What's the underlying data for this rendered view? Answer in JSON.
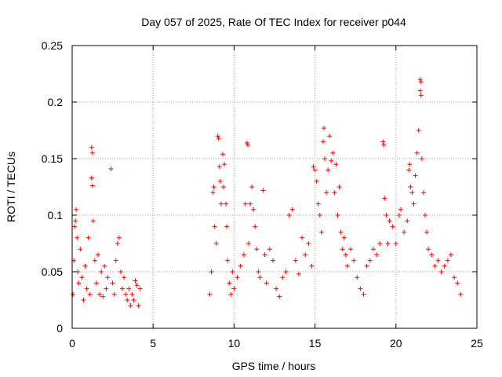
{
  "chart_data": {
    "type": "scatter",
    "title": "Day 057 of 2025, Rate Of TEC Index for receiver p044",
    "xlabel": "GPS time / hours",
    "ylabel": "ROTI / TECUs",
    "xlim": [
      0,
      25
    ],
    "ylim": [
      0,
      0.25
    ],
    "x_ticks": [
      "0",
      "5",
      "10",
      "15",
      "20",
      "25"
    ],
    "y_ticks": [
      "0",
      "0.05",
      "0.1",
      "0.15",
      "0.2",
      "0.25"
    ],
    "grid": true,
    "marker": "+",
    "color": "#ff0000",
    "series": [
      {
        "points": [
          [
            0.05,
            0.03
          ],
          [
            0.1,
            0.06
          ],
          [
            0.15,
            0.09
          ],
          [
            0.2,
            0.095
          ],
          [
            0.25,
            0.105
          ],
          [
            0.3,
            0.08
          ],
          [
            0.35,
            0.05
          ],
          [
            0.4,
            0.04
          ],
          [
            0.5,
            0.07
          ],
          [
            0.6,
            0.045
          ],
          [
            0.7,
            0.025
          ],
          [
            0.8,
            0.055
          ],
          [
            0.9,
            0.035
          ],
          [
            1.0,
            0.08
          ],
          [
            1.1,
            0.03
          ],
          [
            1.2,
            0.16
          ],
          [
            1.25,
            0.155
          ],
          [
            1.2,
            0.133
          ],
          [
            1.25,
            0.126
          ],
          [
            1.3,
            0.095
          ],
          [
            1.4,
            0.06
          ],
          [
            1.5,
            0.04
          ],
          [
            1.6,
            0.065
          ],
          [
            1.7,
            0.03
          ],
          [
            1.8,
            0.05
          ],
          [
            1.9,
            0.028
          ],
          [
            2.0,
            0.055
          ],
          [
            2.1,
            0.035
          ],
          [
            2.2,
            0.045
          ],
          [
            2.4,
            0.141
          ],
          [
            2.5,
            0.04
          ],
          [
            2.6,
            0.03
          ],
          [
            2.7,
            0.06
          ],
          [
            2.8,
            0.075
          ],
          [
            2.9,
            0.08
          ],
          [
            3.0,
            0.05
          ],
          [
            3.1,
            0.035
          ],
          [
            3.2,
            0.045
          ],
          [
            3.3,
            0.03
          ],
          [
            3.4,
            0.025
          ],
          [
            3.5,
            0.035
          ],
          [
            3.6,
            0.02
          ],
          [
            3.7,
            0.03
          ],
          [
            3.8,
            0.025
          ],
          [
            3.9,
            0.042
          ],
          [
            4.0,
            0.038
          ],
          [
            4.1,
            0.02
          ],
          [
            4.2,
            0.035
          ],
          [
            8.5,
            0.03
          ],
          [
            8.6,
            0.05
          ],
          [
            8.7,
            0.12
          ],
          [
            8.75,
            0.125
          ],
          [
            8.8,
            0.09
          ],
          [
            8.9,
            0.075
          ],
          [
            9.0,
            0.17
          ],
          [
            9.05,
            0.168
          ],
          [
            9.1,
            0.143
          ],
          [
            9.15,
            0.13
          ],
          [
            9.2,
            0.11
          ],
          [
            9.3,
            0.154
          ],
          [
            9.35,
            0.125
          ],
          [
            9.4,
            0.145
          ],
          [
            9.5,
            0.11
          ],
          [
            9.55,
            0.09
          ],
          [
            9.6,
            0.06
          ],
          [
            9.7,
            0.04
          ],
          [
            9.8,
            0.03
          ],
          [
            9.9,
            0.05
          ],
          [
            10.0,
            0.035
          ],
          [
            10.2,
            0.045
          ],
          [
            10.4,
            0.055
          ],
          [
            10.6,
            0.065
          ],
          [
            10.7,
            0.11
          ],
          [
            10.8,
            0.164
          ],
          [
            10.85,
            0.162
          ],
          [
            10.9,
            0.075
          ],
          [
            11.0,
            0.11
          ],
          [
            11.1,
            0.125
          ],
          [
            11.2,
            0.105
          ],
          [
            11.3,
            0.09
          ],
          [
            11.4,
            0.07
          ],
          [
            11.5,
            0.05
          ],
          [
            11.6,
            0.045
          ],
          [
            11.8,
            0.122
          ],
          [
            11.9,
            0.065
          ],
          [
            12.0,
            0.04
          ],
          [
            12.2,
            0.07
          ],
          [
            12.4,
            0.06
          ],
          [
            12.6,
            0.035
          ],
          [
            12.8,
            0.028
          ],
          [
            13.0,
            0.045
          ],
          [
            13.2,
            0.05
          ],
          [
            13.4,
            0.1
          ],
          [
            13.6,
            0.105
          ],
          [
            13.8,
            0.06
          ],
          [
            14.0,
            0.048
          ],
          [
            14.2,
            0.08
          ],
          [
            14.4,
            0.065
          ],
          [
            14.6,
            0.075
          ],
          [
            14.8,
            0.055
          ],
          [
            14.9,
            0.143
          ],
          [
            15.0,
            0.14
          ],
          [
            15.1,
            0.13
          ],
          [
            15.2,
            0.11
          ],
          [
            15.3,
            0.1
          ],
          [
            15.4,
            0.085
          ],
          [
            15.5,
            0.165
          ],
          [
            15.55,
            0.177
          ],
          [
            15.6,
            0.15
          ],
          [
            15.7,
            0.12
          ],
          [
            15.8,
            0.14
          ],
          [
            15.9,
            0.17
          ],
          [
            16.0,
            0.148
          ],
          [
            16.1,
            0.155
          ],
          [
            16.2,
            0.12
          ],
          [
            16.3,
            0.145
          ],
          [
            16.4,
            0.1
          ],
          [
            16.5,
            0.125
          ],
          [
            16.6,
            0.085
          ],
          [
            16.7,
            0.07
          ],
          [
            16.8,
            0.08
          ],
          [
            16.9,
            0.065
          ],
          [
            17.0,
            0.055
          ],
          [
            17.2,
            0.07
          ],
          [
            17.4,
            0.06
          ],
          [
            17.6,
            0.045
          ],
          [
            17.8,
            0.035
          ],
          [
            18.0,
            0.03
          ],
          [
            18.2,
            0.055
          ],
          [
            18.4,
            0.06
          ],
          [
            18.6,
            0.07
          ],
          [
            18.8,
            0.065
          ],
          [
            19.0,
            0.075
          ],
          [
            19.2,
            0.165
          ],
          [
            19.25,
            0.162
          ],
          [
            19.3,
            0.115
          ],
          [
            19.4,
            0.1
          ],
          [
            19.5,
            0.075
          ],
          [
            19.6,
            0.095
          ],
          [
            19.8,
            0.09
          ],
          [
            20.0,
            0.075
          ],
          [
            20.2,
            0.1
          ],
          [
            20.3,
            0.105
          ],
          [
            20.5,
            0.085
          ],
          [
            20.7,
            0.095
          ],
          [
            20.8,
            0.14
          ],
          [
            20.85,
            0.145
          ],
          [
            20.9,
            0.125
          ],
          [
            21.0,
            0.12
          ],
          [
            21.1,
            0.11
          ],
          [
            21.2,
            0.135
          ],
          [
            21.3,
            0.155
          ],
          [
            21.4,
            0.175
          ],
          [
            21.5,
            0.22
          ],
          [
            21.55,
            0.218
          ],
          [
            21.5,
            0.21
          ],
          [
            21.55,
            0.206
          ],
          [
            21.6,
            0.15
          ],
          [
            21.7,
            0.12
          ],
          [
            21.8,
            0.1
          ],
          [
            21.9,
            0.085
          ],
          [
            22.0,
            0.07
          ],
          [
            22.2,
            0.065
          ],
          [
            22.4,
            0.055
          ],
          [
            22.6,
            0.06
          ],
          [
            22.8,
            0.05
          ],
          [
            23.0,
            0.055
          ],
          [
            23.2,
            0.06
          ],
          [
            23.4,
            0.065
          ],
          [
            23.6,
            0.045
          ],
          [
            23.8,
            0.04
          ],
          [
            24.0,
            0.03
          ]
        ]
      }
    ]
  }
}
